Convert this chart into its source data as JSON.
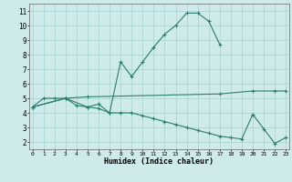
{
  "xlabel": "Humidex (Indice chaleur)",
  "line_color": "#2a7d6e",
  "bg_color": "#ceeaea",
  "grid_color": "#aacfcf",
  "series": {
    "peak": {
      "x": [
        0,
        1,
        2,
        3,
        4,
        5,
        6,
        7,
        8,
        9,
        10,
        11,
        12,
        13,
        14,
        15,
        16,
        17
      ],
      "y": [
        4.4,
        5.0,
        5.0,
        5.0,
        4.5,
        4.4,
        4.6,
        4.0,
        7.5,
        6.5,
        7.5,
        8.5,
        9.4,
        10.0,
        10.85,
        10.85,
        10.3,
        8.7
      ]
    },
    "upper": {
      "x": [
        0,
        3,
        5,
        17,
        20,
        22,
        23
      ],
      "y": [
        4.4,
        5.0,
        5.1,
        5.3,
        5.5,
        5.5,
        5.5
      ]
    },
    "lower": {
      "x": [
        0,
        3,
        5,
        6,
        7,
        8,
        9,
        10,
        11,
        12,
        13,
        14,
        15,
        16,
        17,
        18,
        19,
        20,
        21,
        22,
        23
      ],
      "y": [
        4.4,
        5.0,
        4.4,
        4.3,
        4.0,
        4.0,
        4.0,
        3.8,
        3.6,
        3.4,
        3.2,
        3.0,
        2.8,
        2.6,
        2.4,
        2.3,
        2.2,
        3.9,
        2.9,
        1.9,
        2.3
      ]
    }
  },
  "xlim": [
    -0.3,
    23.3
  ],
  "ylim": [
    1.5,
    11.5
  ],
  "yticks": [
    2,
    3,
    4,
    5,
    6,
    7,
    8,
    9,
    10,
    11
  ],
  "xticks": [
    0,
    1,
    2,
    3,
    4,
    5,
    6,
    7,
    8,
    9,
    10,
    11,
    12,
    13,
    14,
    15,
    16,
    17,
    18,
    19,
    20,
    21,
    22,
    23
  ]
}
